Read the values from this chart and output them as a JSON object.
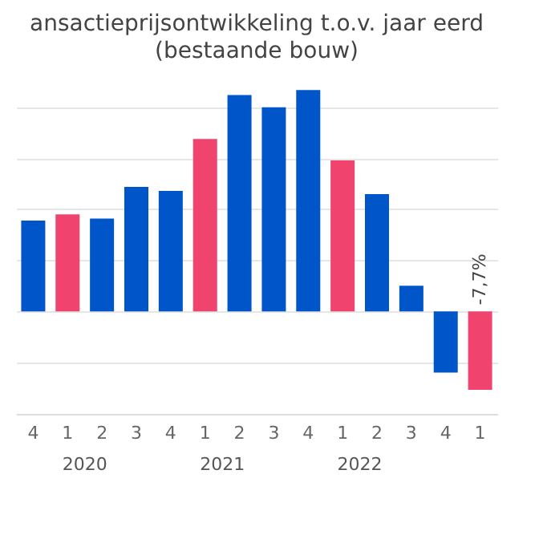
{
  "chart_data": {
    "type": "bar",
    "title": "ansactieprijsontwikkeling t.o.v. jaar eerd",
    "subtitle": "(bestaande bouw)",
    "categories": [
      "4",
      "1",
      "2",
      "3",
      "4",
      "1",
      "2",
      "3",
      "4",
      "1",
      "2",
      "3",
      "4",
      "1"
    ],
    "values": [
      8.9,
      9.5,
      9.1,
      12.2,
      11.8,
      16.9,
      21.2,
      20.0,
      21.7,
      14.8,
      11.5,
      2.5,
      -6.0,
      -7.7
    ],
    "colors": [
      "#0055c8",
      "#f0436e",
      "#0055c8",
      "#0055c8",
      "#0055c8",
      "#f0436e",
      "#0055c8",
      "#0055c8",
      "#0055c8",
      "#f0436e",
      "#0055c8",
      "#0055c8",
      "#0055c8",
      "#f0436e"
    ],
    "value_labels": [
      null,
      null,
      null,
      null,
      null,
      null,
      null,
      null,
      null,
      null,
      null,
      null,
      null,
      "-7,7%"
    ],
    "annotations": [
      "2020",
      "2021",
      "2022"
    ],
    "grid": "y",
    "legend": false
  }
}
